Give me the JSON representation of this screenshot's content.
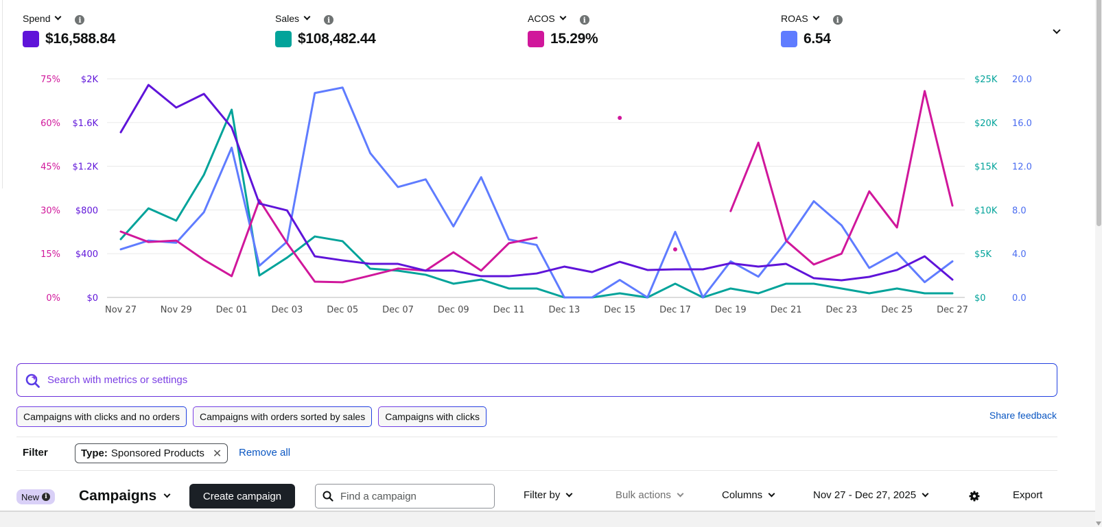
{
  "metrics": [
    {
      "label": "Spend",
      "value": "$16,588.84",
      "color": "#5f14d9"
    },
    {
      "label": "Sales",
      "value": "$108,482.44",
      "color": "#02a39a"
    },
    {
      "label": "ACOS",
      "value": "15.29%",
      "color": "#d0179b"
    },
    {
      "label": "ROAS",
      "value": "6.54",
      "color": "#5f7cff"
    }
  ],
  "chart_data": {
    "type": "line",
    "title": "",
    "xlabel": "",
    "x": [
      "Nov 27",
      "Nov 28",
      "Nov 29",
      "Nov 30",
      "Dec 01",
      "Dec 02",
      "Dec 03",
      "Dec 04",
      "Dec 05",
      "Dec 06",
      "Dec 07",
      "Dec 08",
      "Dec 09",
      "Dec 10",
      "Dec 11",
      "Dec 12",
      "Dec 13",
      "Dec 14",
      "Dec 15",
      "Dec 16",
      "Dec 17",
      "Dec 18",
      "Dec 19",
      "Dec 20",
      "Dec 21",
      "Dec 22",
      "Dec 23",
      "Dec 24",
      "Dec 25",
      "Dec 26",
      "Dec 27"
    ],
    "x_tick_labels": [
      "Nov 27",
      "Nov 29",
      "Dec 01",
      "Dec 03",
      "Dec 05",
      "Dec 07",
      "Dec 09",
      "Dec 11",
      "Dec 13",
      "Dec 15",
      "Dec 17",
      "Dec 19",
      "Dec 21",
      "Dec 23",
      "Dec 25",
      "Dec 27"
    ],
    "grid": true,
    "legend": "top",
    "axes": {
      "acos": {
        "side": "left-outer",
        "ylim": [
          0,
          75
        ],
        "ticks": [
          "0%",
          "15%",
          "30%",
          "45%",
          "60%",
          "75%"
        ],
        "color": "#d0179b"
      },
      "spend": {
        "side": "left-inner",
        "ylim": [
          0,
          2000
        ],
        "ticks": [
          "$0",
          "$400",
          "$800",
          "$1.2K",
          "$1.6K",
          "$2K"
        ],
        "color": "#5f14d9"
      },
      "sales": {
        "side": "right-inner",
        "ylim": [
          0,
          25000
        ],
        "ticks": [
          "$0",
          "$5K",
          "$10K",
          "$15K",
          "$20K",
          "$25K"
        ],
        "color": "#02a39a"
      },
      "roas": {
        "side": "right-outer",
        "ylim": [
          0,
          20
        ],
        "ticks": [
          "0.0",
          "4.0",
          "8.0",
          "12.0",
          "16.0",
          "20.0"
        ],
        "color": "#4a6cf0"
      }
    },
    "series": [
      {
        "name": "Spend",
        "axis": "spend",
        "color": "#5f14d9",
        "values": [
          1511,
          1944,
          1737,
          1862,
          1555,
          859,
          796,
          376,
          339,
          307,
          307,
          245,
          245,
          194,
          194,
          219,
          282,
          232,
          326,
          251,
          257,
          257,
          313,
          282,
          307,
          176,
          157,
          188,
          251,
          376,
          163
        ]
      },
      {
        "name": "Sales",
        "axis": "sales",
        "color": "#02a39a",
        "values": [
          6660,
          10190,
          8780,
          14030,
          21470,
          2510,
          4550,
          6970,
          6430,
          3290,
          3060,
          2590,
          1570,
          2040,
          1020,
          1020,
          0,
          0,
          470,
          0,
          1570,
          0,
          1020,
          470,
          1570,
          1570,
          1020,
          470,
          1020,
          470,
          470
        ]
      },
      {
        "name": "ACOS",
        "axis": "acos",
        "color": "#d0179b",
        "values": [
          22.6,
          19.0,
          19.5,
          12.9,
          7.3,
          33.4,
          18.6,
          5.4,
          5.2,
          7.5,
          9.9,
          9.2,
          15.5,
          9.2,
          18.6,
          20.5,
          null,
          null,
          61.6,
          null,
          16.5,
          null,
          29.6,
          53.1,
          19.5,
          11.3,
          15.0,
          36.4,
          24.0,
          70.8,
          31.5
        ]
      },
      {
        "name": "ROAS",
        "axis": "roas",
        "color": "#5f7cff",
        "values": [
          4.4,
          5.2,
          5.0,
          7.8,
          13.7,
          2.9,
          5.1,
          18.7,
          19.2,
          13.2,
          10.1,
          10.8,
          6.5,
          11.0,
          5.3,
          4.8,
          0,
          0,
          1.6,
          0,
          6.0,
          0,
          3.3,
          1.9,
          5.1,
          8.8,
          6.6,
          2.7,
          4.1,
          1.4,
          3.3
        ]
      }
    ]
  },
  "search": {
    "placeholder": "Search with metrics or settings"
  },
  "suggestions": [
    "Campaigns with clicks and no orders",
    "Campaigns with orders sorted by sales",
    "Campaigns with clicks"
  ],
  "share_feedback": "Share feedback",
  "filter": {
    "label": "Filter",
    "token_key": "Type:",
    "token_value": "Sponsored Products",
    "remove_all": "Remove all"
  },
  "toolbar": {
    "badge": "New",
    "title": "Campaigns",
    "create_label": "Create campaign",
    "find_placeholder": "Find a campaign",
    "filter_by": "Filter by",
    "bulk_actions": "Bulk actions",
    "columns": "Columns",
    "date_range": "Nov 27 - Dec 27, 2025",
    "export": "Export"
  }
}
